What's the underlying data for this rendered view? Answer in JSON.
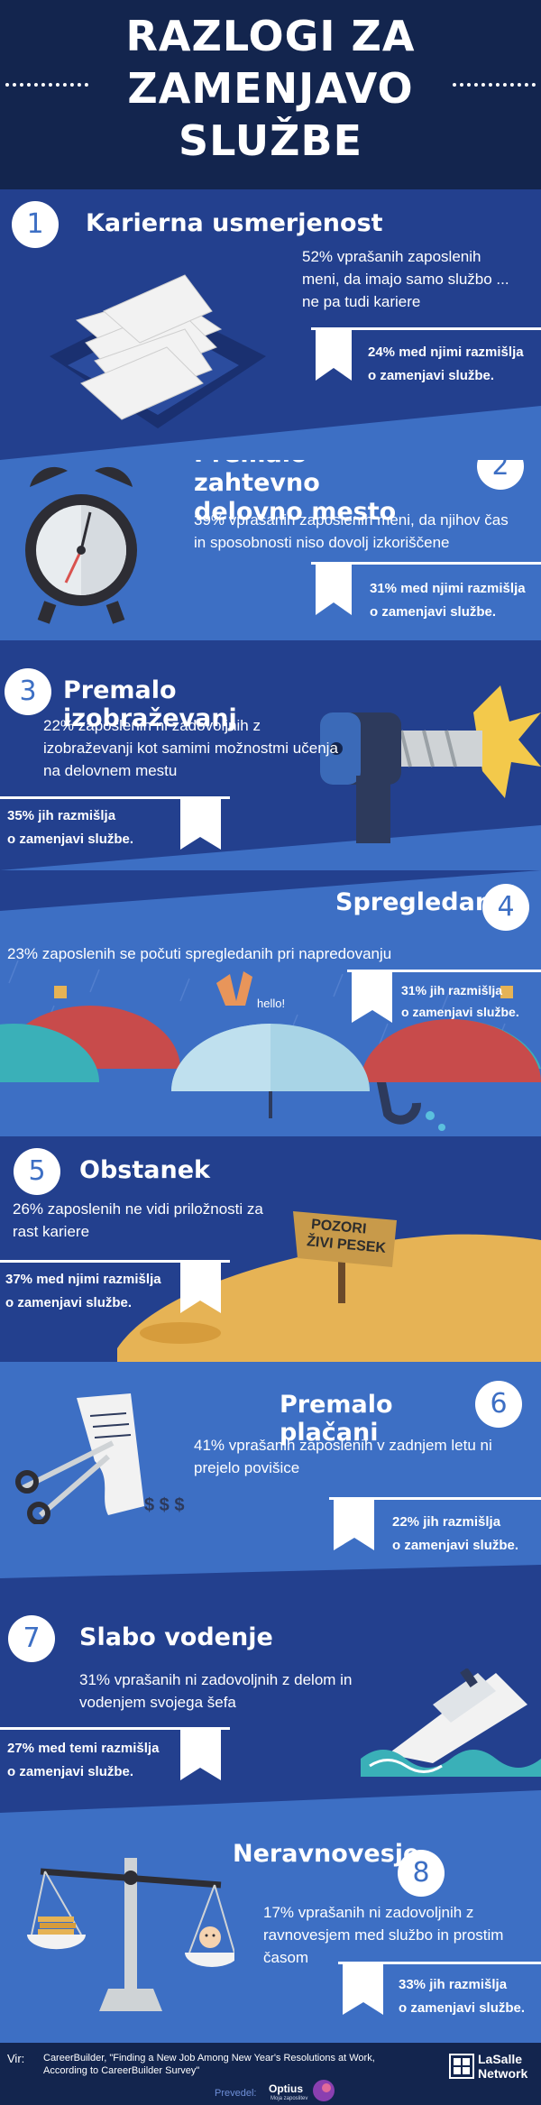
{
  "header": {
    "title_lines": [
      "RAZLOGI ZA",
      "ZAMENJAVO",
      "SLUŽBE"
    ]
  },
  "reasons": [
    {
      "number": "1",
      "title": "Karierna usmerjenost",
      "description": "52% vprašanih zaposlenih meni, da imajo samo službo ... ne pa tudi kariere",
      "stat_line1": "24% med njimi razmišlja",
      "stat_line2": "o zamenjavi službe."
    },
    {
      "number": "2",
      "title": "Premalo zahtevno delovno mesto",
      "description": "39% vprašanih zaposlenih meni, da njihov čas in sposobnosti niso dovolj izkoriščene",
      "stat_line1": "31% med njimi razmišlja",
      "stat_line2": "o zamenjavi službe."
    },
    {
      "number": "3",
      "title": "Premalo izobraževanj",
      "description": "22% zaposlenih ni zadovoljnih z izobraževanji kot samimi možnostmi učenja na delovnem mestu",
      "stat_line1": "35% jih razmišlja",
      "stat_line2": "o zamenjavi službe."
    },
    {
      "number": "4",
      "title": "Spregledani",
      "description": "23% zaposlenih se počuti spregledanih pri napredovanju",
      "stat_line1": "31% jih razmišlja",
      "stat_line2": "o zamenjavi službe.",
      "speech_bubble": "hello!"
    },
    {
      "number": "5",
      "title": "Obstanek",
      "description": "26% zaposlenih ne vidi priložnosti za rast kariere",
      "stat_line1": "37% med njimi razmišlja",
      "stat_line2": "o zamenjavi službe.",
      "sign_line1": "POZORI",
      "sign_line2": "ŽIVI PESEK"
    },
    {
      "number": "6",
      "title": "Premalo plačani",
      "description": "41% vprašanih zaposlenih v zadnjem letu ni prejelo povišice",
      "stat_line1": "22% jih razmišlja",
      "stat_line2": "o zamenjavi službe.",
      "bill_text": "$ $ $"
    },
    {
      "number": "7",
      "title": "Slabo vodenje",
      "description": "31% vprašanih ni zadovoljnih z delom in vodenjem svojega šefa",
      "stat_line1": "27% med temi razmišlja",
      "stat_line2": "o zamenjavi službe."
    },
    {
      "number": "8",
      "title": "Neravnovesje",
      "description": "17% vprašanih ni zadovoljnih z ravnovesjem med službo in prostim časom",
      "stat_line1": "33% jih razmišlja",
      "stat_line2": "o zamenjavi službe."
    }
  ],
  "footer": {
    "source_label": "Vir:",
    "source_text": "CareerBuilder, \"Finding a New Job Among New Year's Resolutions at Work, According to CareerBuilder Survey\"",
    "translated_label": "Prevedel:",
    "translator_name": "Optius",
    "translator_tagline": "Moja zaposlitev",
    "brand_line1": "LaSalle",
    "brand_line2": "Network"
  },
  "colors": {
    "dark_navy": "#14254f",
    "mid_blue": "#23408e",
    "light_blue": "#3d6fc4",
    "accent_sand": "#e6b355",
    "red": "#c84b4b",
    "teal": "#3ab0b8"
  }
}
